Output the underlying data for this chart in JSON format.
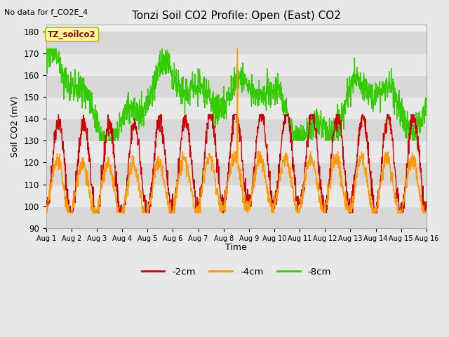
{
  "title": "Tonzi Soil CO2 Profile: Open (East) CO2",
  "subtitle": "No data for f_CO2E_4",
  "ylabel": "Soil CO2 (mV)",
  "xlabel": "Time",
  "ylim": [
    90,
    183
  ],
  "yticks": [
    90,
    100,
    110,
    120,
    130,
    140,
    150,
    160,
    170,
    180
  ],
  "legend_label_2cm": "-2cm",
  "legend_label_4cm": "-4cm",
  "legend_label_8cm": "-8cm",
  "color_2cm": "#cc0000",
  "color_4cm": "#ff9900",
  "color_8cm": "#33cc00",
  "line_width": 1.0,
  "bg_color": "#e8e8e8",
  "plot_bg_color": "#f0f0f0",
  "legend_box_color": "#ffff99",
  "legend_box_edge": "#ccaa00",
  "inset_label": "TZ_soilco2",
  "n_days": 15,
  "pts_per_day": 96,
  "seed": 42,
  "band_colors": [
    "#d8d8d8",
    "#e8e8e8"
  ],
  "figsize": [
    6.4,
    4.8
  ],
  "dpi": 100
}
